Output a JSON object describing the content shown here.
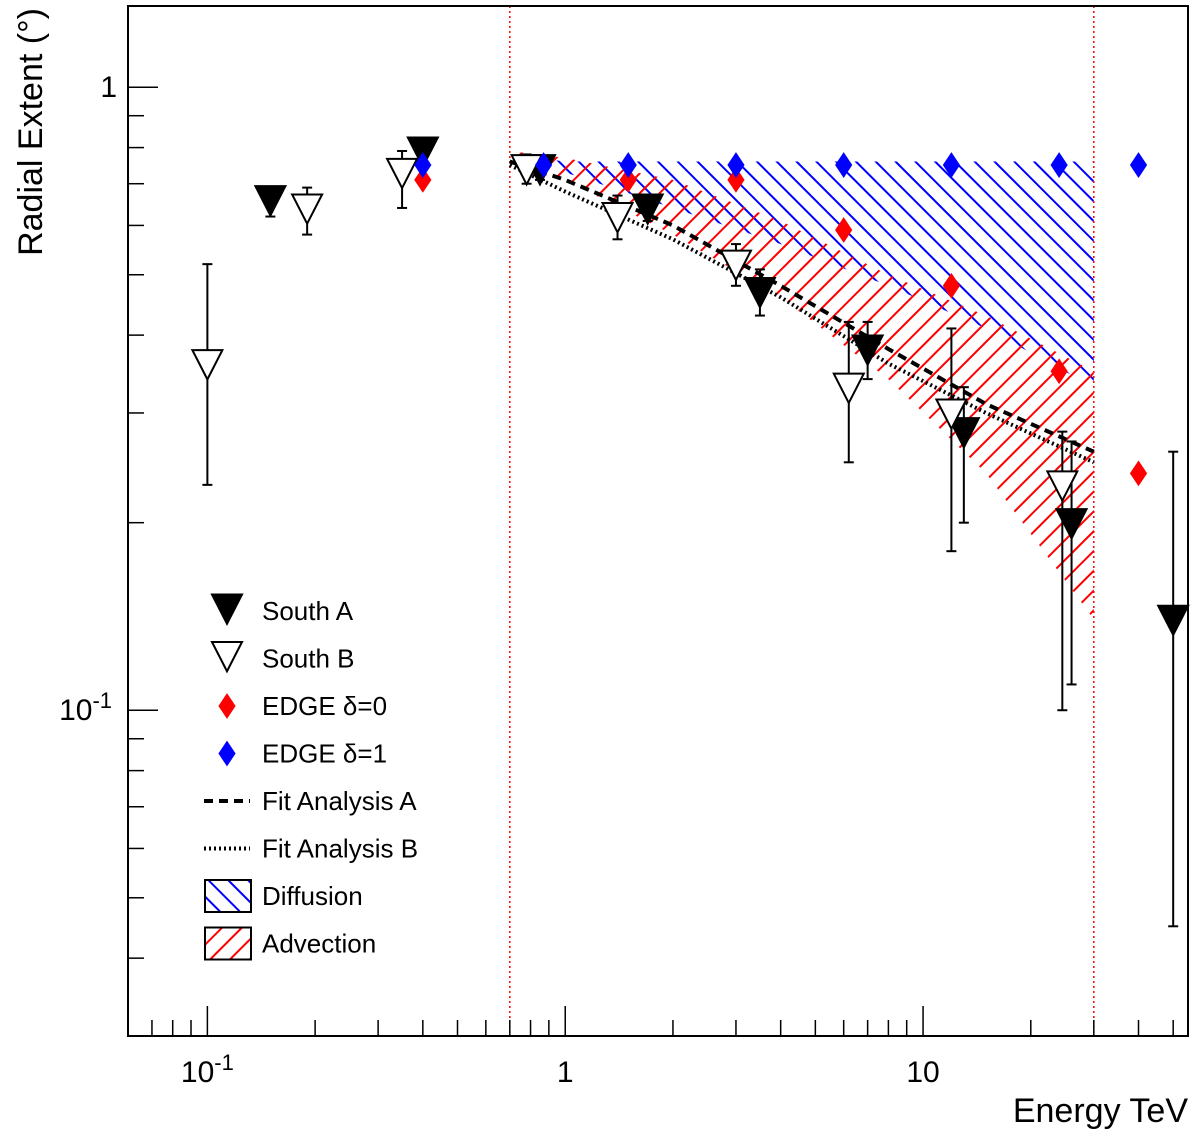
{
  "chart_data": {
    "type": "scatter",
    "title": "",
    "xlabel": "Energy TeV",
    "ylabel": "Radial Extent (°)",
    "xscale": "log",
    "yscale": "log",
    "xlim": [
      0.06,
      55
    ],
    "ylim": [
      0.03,
      1.35
    ],
    "x_tick_labels": [
      {
        "value": 0.1,
        "base": "10",
        "exp": "-1"
      },
      {
        "value": 1,
        "base": "1",
        "exp": ""
      },
      {
        "value": 10,
        "base": "10",
        "exp": ""
      }
    ],
    "y_tick_labels": [
      {
        "value": 1,
        "base": "1",
        "exp": ""
      },
      {
        "value": 0.1,
        "base": "10",
        "exp": "-1"
      }
    ],
    "vertical_lines": [
      0.7,
      30
    ],
    "series": [
      {
        "name": "South A",
        "marker": "filled-down-triangle",
        "color": "#000000",
        "points": [
          {
            "x": 0.15,
            "y": 0.66,
            "ylo": 0.62,
            "yhi": 0.68
          },
          {
            "x": 0.4,
            "y": 0.79,
            "ylo": 0.78,
            "yhi": 0.8
          },
          {
            "x": 0.85,
            "y": 0.74,
            "ylo": 0.71,
            "yhi": 0.77
          },
          {
            "x": 1.7,
            "y": 0.64,
            "ylo": 0.61,
            "yhi": 0.67
          },
          {
            "x": 3.5,
            "y": 0.47,
            "ylo": 0.43,
            "yhi": 0.51
          },
          {
            "x": 7.0,
            "y": 0.38,
            "ylo": 0.34,
            "yhi": 0.42
          },
          {
            "x": 13.0,
            "y": 0.28,
            "ylo": 0.2,
            "yhi": 0.33
          },
          {
            "x": 26.0,
            "y": 0.2,
            "ylo": 0.11,
            "yhi": 0.27
          },
          {
            "x": 50.0,
            "y": 0.14,
            "ylo": 0.045,
            "yhi": 0.26
          }
        ]
      },
      {
        "name": "South B",
        "marker": "open-down-triangle",
        "color": "#000000",
        "points": [
          {
            "x": 0.1,
            "y": 0.36,
            "ylo": 0.23,
            "yhi": 0.52
          },
          {
            "x": 0.19,
            "y": 0.64,
            "ylo": 0.58,
            "yhi": 0.69
          },
          {
            "x": 0.35,
            "y": 0.73,
            "ylo": 0.64,
            "yhi": 0.79
          },
          {
            "x": 0.78,
            "y": 0.74,
            "ylo": 0.7,
            "yhi": 0.78
          },
          {
            "x": 1.4,
            "y": 0.62,
            "ylo": 0.57,
            "yhi": 0.67
          },
          {
            "x": 3.0,
            "y": 0.52,
            "ylo": 0.48,
            "yhi": 0.56
          },
          {
            "x": 6.2,
            "y": 0.33,
            "ylo": 0.25,
            "yhi": 0.42
          },
          {
            "x": 12.0,
            "y": 0.3,
            "ylo": 0.18,
            "yhi": 0.41
          },
          {
            "x": 24.5,
            "y": 0.23,
            "ylo": 0.1,
            "yhi": 0.28
          }
        ]
      },
      {
        "name": "EDGE δ=0",
        "marker": "diamond",
        "color": "#ff0000",
        "points": [
          {
            "x": 0.4,
            "y": 0.71
          },
          {
            "x": 1.5,
            "y": 0.71
          },
          {
            "x": 3.0,
            "y": 0.71
          },
          {
            "x": 6.0,
            "y": 0.59
          },
          {
            "x": 12.0,
            "y": 0.48
          },
          {
            "x": 24.0,
            "y": 0.35
          },
          {
            "x": 40.0,
            "y": 0.24
          }
        ]
      },
      {
        "name": "EDGE δ=1",
        "marker": "diamond",
        "color": "#0000ff",
        "points": [
          {
            "x": 0.4,
            "y": 0.75
          },
          {
            "x": 0.87,
            "y": 0.75
          },
          {
            "x": 1.5,
            "y": 0.75
          },
          {
            "x": 3.0,
            "y": 0.75
          },
          {
            "x": 6.0,
            "y": 0.75
          },
          {
            "x": 12.0,
            "y": 0.75
          },
          {
            "x": 24.0,
            "y": 0.75
          },
          {
            "x": 40.0,
            "y": 0.75
          }
        ]
      },
      {
        "name": "Fit Analysis A",
        "style": "dashed",
        "color": "#000000",
        "x": [
          0.7,
          1,
          2,
          4,
          8,
          15,
          30
        ],
        "y": [
          0.76,
          0.71,
          0.6,
          0.48,
          0.38,
          0.31,
          0.26
        ]
      },
      {
        "name": "Fit Analysis B",
        "style": "dotted",
        "color": "#000000",
        "x": [
          0.7,
          1,
          2,
          4,
          8,
          15,
          30
        ],
        "y": [
          0.75,
          0.68,
          0.57,
          0.46,
          0.36,
          0.3,
          0.25
        ]
      }
    ],
    "bands": [
      {
        "name": "Diffusion",
        "color": "#0000ff",
        "hatch": "\\\\",
        "x": [
          0.7,
          1,
          2,
          4,
          8,
          15,
          30
        ],
        "upper": [
          0.78,
          0.76,
          0.76,
          0.76,
          0.76,
          0.76,
          0.76
        ],
        "lower": [
          0.77,
          0.73,
          0.64,
          0.56,
          0.48,
          0.41,
          0.33
        ]
      },
      {
        "name": "Advection",
        "color": "#ff0000",
        "hatch": "//",
        "x": [
          0.7,
          1,
          2,
          4,
          8,
          15,
          30
        ],
        "upper": [
          0.79,
          0.77,
          0.71,
          0.61,
          0.5,
          0.43,
          0.35
        ],
        "lower": [
          0.77,
          0.71,
          0.58,
          0.46,
          0.34,
          0.24,
          0.14
        ]
      }
    ],
    "legend": {
      "position": "lower-left",
      "entries": [
        {
          "label": "South A",
          "kind": "filled-down-triangle"
        },
        {
          "label": "South B",
          "kind": "open-down-triangle"
        },
        {
          "label": "EDGE δ=0",
          "kind": "red-diamond"
        },
        {
          "label": "EDGE δ=1",
          "kind": "blue-diamond"
        },
        {
          "label": "Fit Analysis A",
          "kind": "dashed-line"
        },
        {
          "label": "Fit Analysis B",
          "kind": "dotted-line"
        },
        {
          "label": "Diffusion",
          "kind": "blue-hatch"
        },
        {
          "label": "Advection",
          "kind": "red-hatch"
        }
      ]
    },
    "colors": {
      "south": "#000000",
      "edge0": "#ff0000",
      "edge1": "#0000ff",
      "vline": "#ff0000"
    }
  }
}
